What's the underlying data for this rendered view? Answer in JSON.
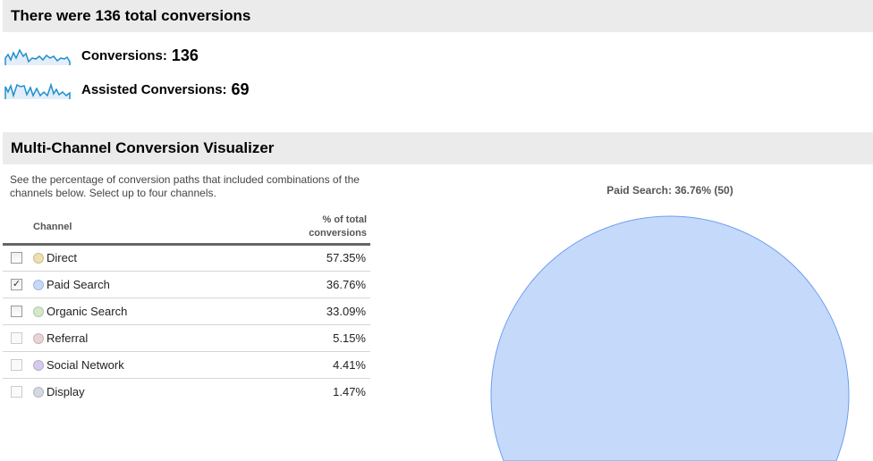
{
  "summary": {
    "title": "There were 136 total conversions",
    "metrics": [
      {
        "label": "Conversions:",
        "value": "136"
      },
      {
        "label": "Assisted Conversions:",
        "value": "69"
      }
    ]
  },
  "visualizer": {
    "title": "Multi-Channel Conversion Visualizer",
    "description": "See the percentage of conversion paths that included combinations of the channels below. Select up to four channels.",
    "columns": {
      "channel": "Channel",
      "pct": "% of total conversions"
    },
    "rows": [
      {
        "channel": "Direct",
        "pct": "57.35%",
        "checked": false,
        "enabled": true,
        "color": "#eedfb0"
      },
      {
        "channel": "Paid Search",
        "pct": "36.76%",
        "checked": true,
        "enabled": true,
        "color": "#c5d9fb"
      },
      {
        "channel": "Organic Search",
        "pct": "33.09%",
        "checked": false,
        "enabled": true,
        "color": "#d4e9c7"
      },
      {
        "channel": "Referral",
        "pct": "5.15%",
        "checked": false,
        "enabled": false,
        "color": "#ebd2d6"
      },
      {
        "channel": "Social Network",
        "pct": "4.41%",
        "checked": false,
        "enabled": false,
        "color": "#d8c9ef"
      },
      {
        "channel": "Display",
        "pct": "1.47%",
        "checked": false,
        "enabled": false,
        "color": "#d4d9e1"
      }
    ],
    "venn_label": "Paid Search: 36.76% (50)",
    "venn_color": "#c5d9fb",
    "venn_stroke": "#6f9ff0"
  }
}
